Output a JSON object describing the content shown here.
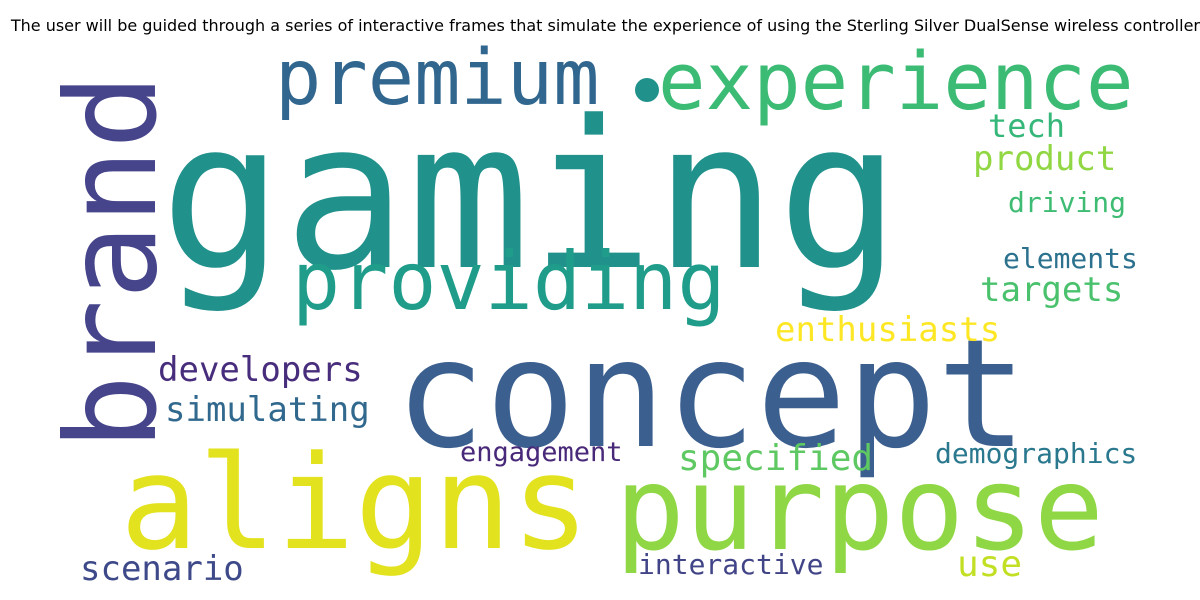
{
  "title": "The user will be guided through a series of interactive frames that simulate the experience of using the Sterling Silver DualSense wireless controller",
  "words": [
    {
      "text": "gaming",
      "color": "#21918c"
    },
    {
      "text": "concept",
      "color": "#3b5f8e"
    },
    {
      "text": "brand",
      "color": "#46448a"
    },
    {
      "text": "aligns",
      "color": "#e3e21e"
    },
    {
      "text": "purpose",
      "color": "#8fd744"
    },
    {
      "text": "premium",
      "color": "#31668e"
    },
    {
      "text": "experience",
      "color": "#3cbb75"
    },
    {
      "text": "providing",
      "color": "#1f9d8a"
    },
    {
      "text": "tech",
      "color": "#35b779"
    },
    {
      "text": "product",
      "color": "#90d743"
    },
    {
      "text": "driving",
      "color": "#3fbc73"
    },
    {
      "text": "elements",
      "color": "#2c728e"
    },
    {
      "text": "targets",
      "color": "#4ac16d"
    },
    {
      "text": "enthusiasts",
      "color": "#fde725"
    },
    {
      "text": "developers",
      "color": "#472d7b"
    },
    {
      "text": "simulating",
      "color": "#31688e"
    },
    {
      "text": "engagement",
      "color": "#482878"
    },
    {
      "text": "specified",
      "color": "#5ec962"
    },
    {
      "text": "demographics",
      "color": "#2a788e"
    },
    {
      "text": "scenario",
      "color": "#3e4989"
    },
    {
      "text": "interactive",
      "color": "#414487"
    },
    {
      "text": "use",
      "color": "#c2df23"
    }
  ]
}
